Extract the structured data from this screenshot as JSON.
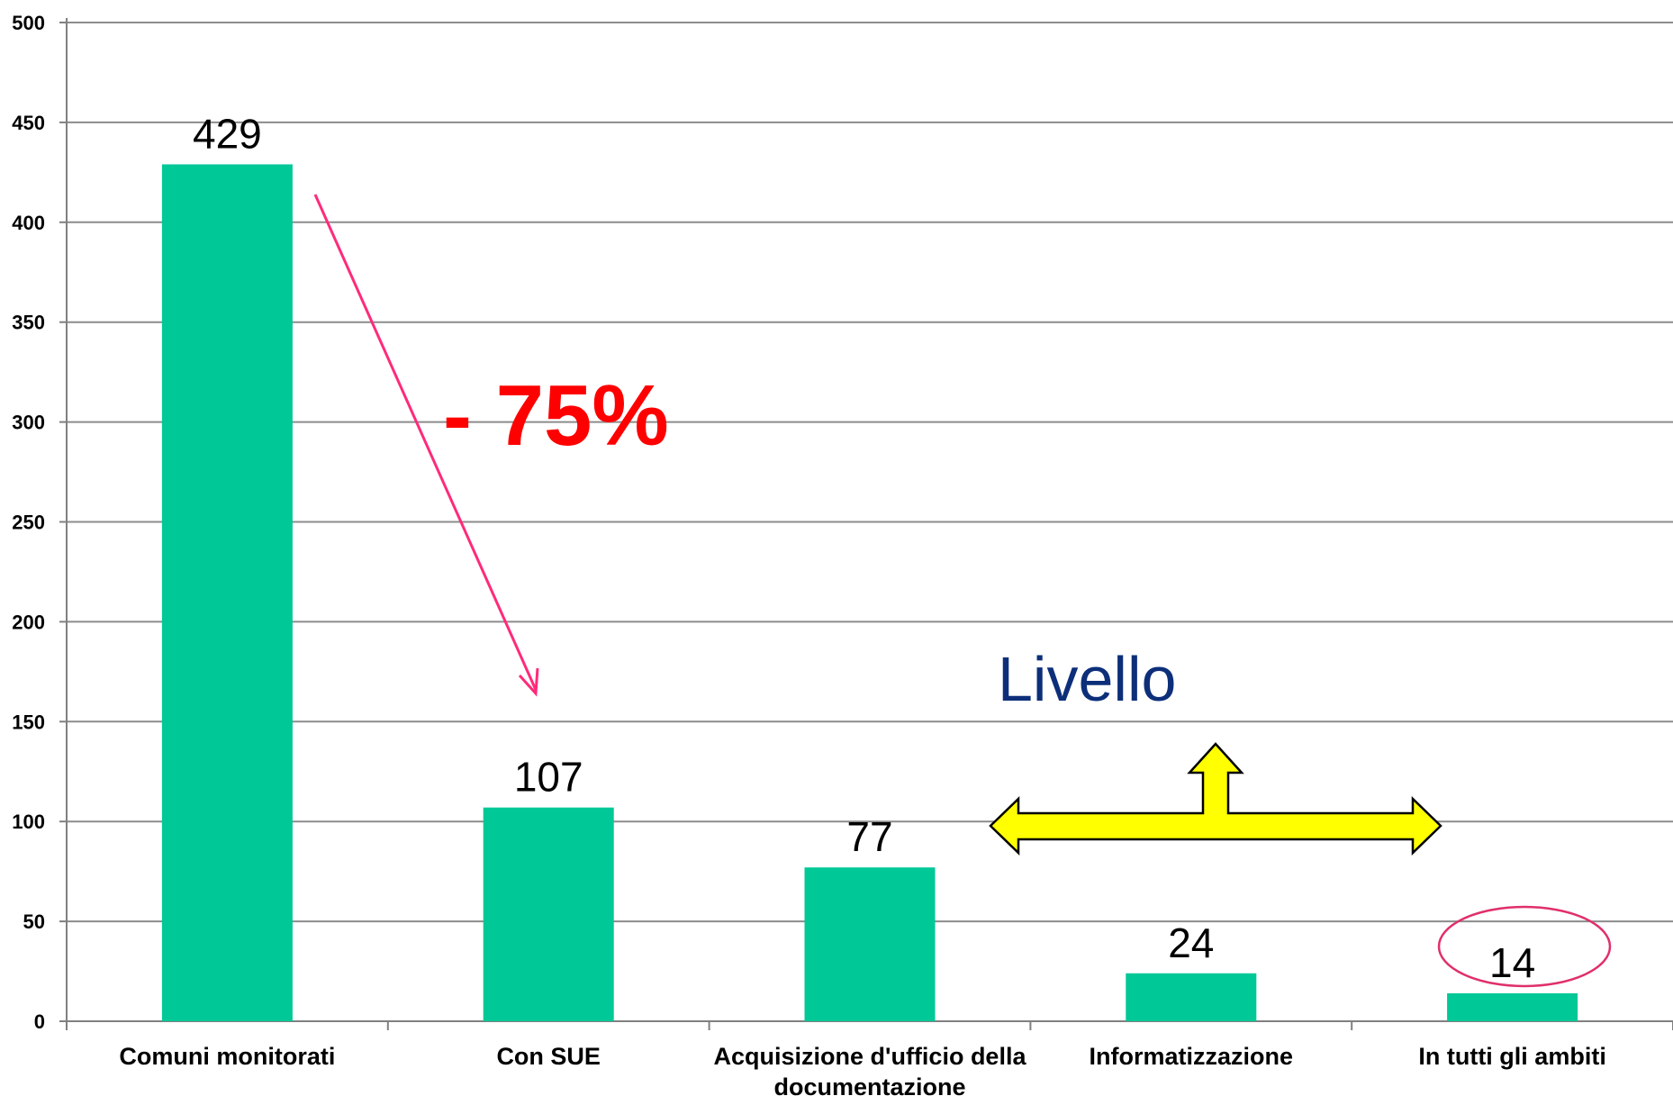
{
  "chart_data": {
    "type": "bar",
    "title": "",
    "xlabel": "",
    "ylabel": "",
    "categories": [
      [
        "Comuni monitorati"
      ],
      [
        "Con SUE"
      ],
      [
        "Acquisizione d'ufficio della",
        "documentazione"
      ],
      [
        "Informatizzazione"
      ],
      [
        "In tutti gli ambiti"
      ]
    ],
    "values": [
      429,
      107,
      77,
      24,
      14
    ],
    "data_labels": [
      "429",
      "107",
      "77",
      "24",
      "14"
    ],
    "ylim": [
      0,
      500
    ],
    "yticks": [
      0,
      50,
      100,
      150,
      200,
      250,
      300,
      350,
      400,
      450,
      500
    ],
    "grid": true,
    "legend": "none",
    "colors": {
      "bar": "#00c897",
      "grid": "#8c8c8c",
      "annotation_arrow": "#ff2a7a",
      "percent_text": "#ff0000",
      "livello_text": "#0d2f7a",
      "yellow_arrow_fill": "#ffff00",
      "highlight_ellipse": "#e0306a"
    },
    "annotations": {
      "percent_change": "- 75%",
      "level_label": "Livello",
      "highlighted_category_index": 4
    }
  }
}
